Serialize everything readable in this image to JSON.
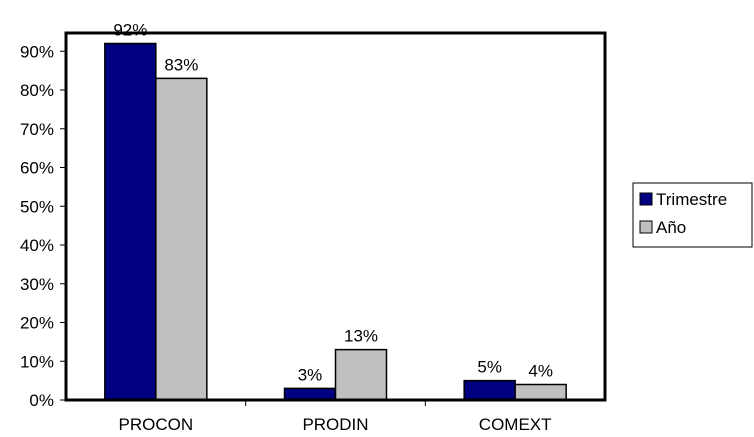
{
  "chart_data": {
    "type": "bar",
    "categories": [
      "PROCON",
      "PRODIN",
      "COMEXT"
    ],
    "series": [
      {
        "name": "Trimestre",
        "values": [
          92,
          3,
          5
        ],
        "labels": [
          "92%",
          "3%",
          "5%"
        ],
        "color": "#000080"
      },
      {
        "name": "Año",
        "values": [
          83,
          13,
          4
        ],
        "labels": [
          "83%",
          "13%",
          "4%"
        ],
        "color": "#C0C0C0"
      }
    ],
    "ylim": [
      0,
      90
    ],
    "yticks": [
      "0%",
      "10%",
      "20%",
      "30%",
      "40%",
      "50%",
      "60%",
      "70%",
      "80%",
      "90%"
    ],
    "ytick_values": [
      0,
      10,
      20,
      30,
      40,
      50,
      60,
      70,
      80,
      90
    ],
    "grid": false,
    "legend_position": "right"
  }
}
